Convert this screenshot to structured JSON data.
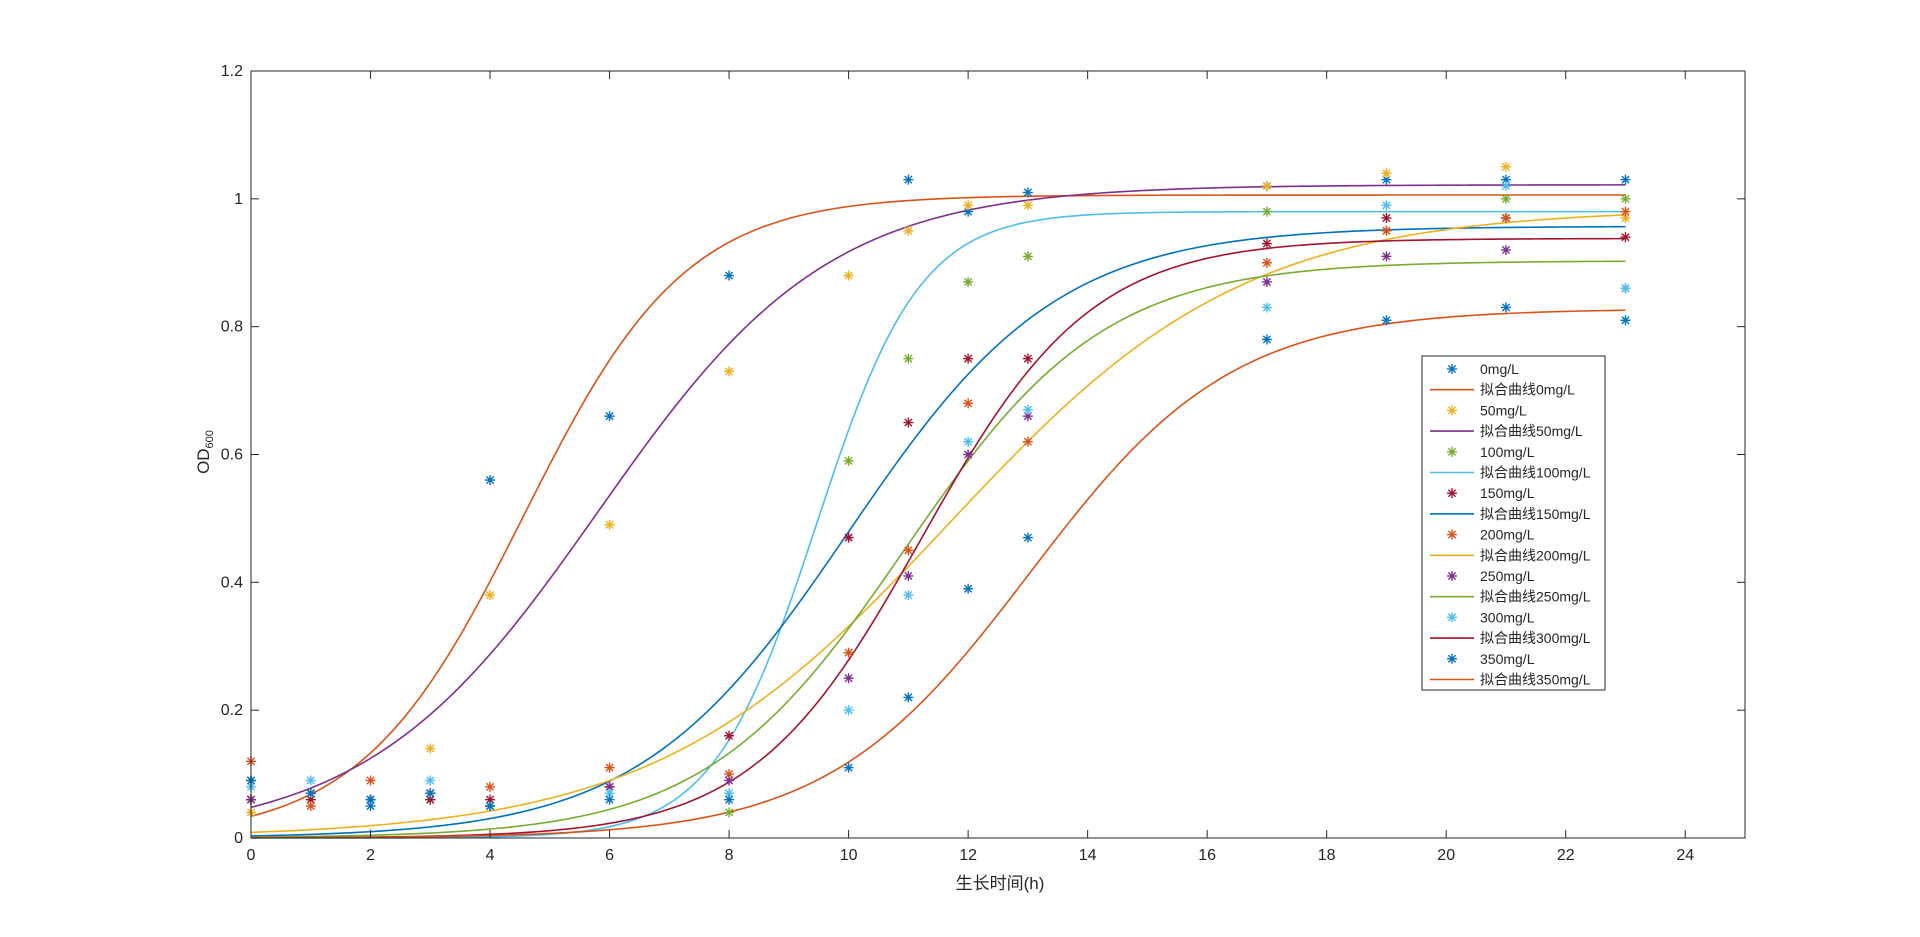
{
  "chart_data": {
    "type": "scatter",
    "title": "",
    "xlabel": "生长时间(h)",
    "ylabel": {
      "main": "OD",
      "sub": "600"
    },
    "xlim": [
      0,
      25
    ],
    "ylim": [
      0,
      1.2
    ],
    "xticks": [
      "0",
      "2",
      "4",
      "6",
      "8",
      "10",
      "12",
      "14",
      "16",
      "18",
      "20",
      "22",
      "24"
    ],
    "yticks": [
      "0",
      "0.2",
      "0.4",
      "0.6",
      "0.8",
      "1",
      "1.2"
    ],
    "grid": false,
    "legend_position": "east",
    "x": [
      0,
      1,
      2,
      3,
      4,
      6,
      8,
      10,
      11,
      12,
      13,
      17,
      19,
      21,
      23
    ],
    "series": [
      {
        "name": "0mg/L",
        "color": "#0072BD",
        "values": [
          0.09,
          0.07,
          0.05,
          0.06,
          0.56,
          0.66,
          0.88,
          0.47,
          1.03,
          0.98,
          1.01,
          1.02,
          1.03,
          1.03,
          1.03
        ]
      },
      {
        "name": "50mg/L",
        "color": "#EDB120",
        "values": [
          0.04,
          0.06,
          0.06,
          0.14,
          0.38,
          0.49,
          0.73,
          0.88,
          0.95,
          0.99,
          0.99,
          1.02,
          1.04,
          1.05,
          0.97
        ]
      },
      {
        "name": "100mg/L",
        "color": "#77AC30",
        "values": [
          0.06,
          0.06,
          0.06,
          0.06,
          0.05,
          0.08,
          0.04,
          0.59,
          0.75,
          0.87,
          0.91,
          0.98,
          0.95,
          1.0,
          1.0
        ]
      },
      {
        "name": "150mg/L",
        "color": "#A2142F",
        "values": [
          0.06,
          0.06,
          0.06,
          0.06,
          0.06,
          0.08,
          0.16,
          0.47,
          0.65,
          0.75,
          0.75,
          0.93,
          0.97,
          0.97,
          0.94
        ]
      },
      {
        "name": "200mg/L",
        "color": "#D95319",
        "values": [
          0.12,
          0.05,
          0.09,
          0.07,
          0.08,
          0.11,
          0.1,
          0.29,
          0.45,
          0.68,
          0.62,
          0.9,
          0.95,
          0.97,
          0.98
        ]
      },
      {
        "name": "250mg/L",
        "color": "#7E2F8E",
        "values": [
          0.06,
          0.07,
          0.06,
          0.07,
          0.05,
          0.08,
          0.09,
          0.25,
          0.41,
          0.6,
          0.66,
          0.87,
          0.91,
          0.92,
          0.86
        ]
      },
      {
        "name": "300mg/L",
        "color": "#4DBEEE",
        "values": [
          0.08,
          0.09,
          0.06,
          0.09,
          0.05,
          0.07,
          0.07,
          0.2,
          0.38,
          0.62,
          0.67,
          0.83,
          0.99,
          1.02,
          0.86
        ]
      },
      {
        "name": "350mg/L",
        "color": "#0072BD",
        "values": [
          0.09,
          0.07,
          0.06,
          0.07,
          0.05,
          0.06,
          0.06,
          0.11,
          0.22,
          0.39,
          0.47,
          0.78,
          0.81,
          0.83,
          0.81
        ]
      }
    ],
    "fits": [
      {
        "name": "拟合曲线0mg/L",
        "color": "#D95319",
        "K": 1.006,
        "N0": 0.034,
        "r": 0.736
      },
      {
        "name": "拟合曲线50mg/L",
        "color": "#7E2F8E",
        "K": 1.022,
        "N0": 0.048,
        "r": 0.518
      },
      {
        "name": "拟合曲线100mg/L",
        "color": "#4DBEEE",
        "K": 0.98,
        "N0": 1.78e-05,
        "r": 1.154
      },
      {
        "name": "拟合曲线150mg/L",
        "color": "#0072BD",
        "K": 0.957,
        "N0": 0.0032,
        "r": 0.57
      },
      {
        "name": "拟合曲线200mg/L",
        "color": "#EDB120",
        "K": 0.985,
        "N0": 0.0087,
        "r": 0.404
      },
      {
        "name": "拟合曲线250mg/L",
        "color": "#77AC30",
        "K": 0.903,
        "N0": 0.0013,
        "r": 0.598
      },
      {
        "name": "拟合曲线300mg/L",
        "color": "#A2142F",
        "K": 0.938,
        "N0": 0.00034,
        "r": 0.706
      },
      {
        "name": "拟合曲线350mg/L",
        "color": "#D95319",
        "K": 0.828,
        "N0": 0.00038,
        "r": 0.59
      }
    ],
    "legend": [
      "0mg/L",
      "拟合曲线0mg/L",
      "50mg/L",
      "拟合曲线50mg/L",
      "100mg/L",
      "拟合曲线100mg/L",
      "150mg/L",
      "拟合曲线150mg/L",
      "200mg/L",
      "拟合曲线200mg/L",
      "250mg/L",
      "拟合曲线250mg/L",
      "300mg/L",
      "拟合曲线300mg/L",
      "350mg/L",
      "拟合曲线350mg/L"
    ],
    "legend_colors": [
      "#0072BD",
      "#D95319",
      "#EDB120",
      "#7E2F8E",
      "#77AC30",
      "#4DBEEE",
      "#A2142F",
      "#0072BD",
      "#D95319",
      "#EDB120",
      "#7E2F8E",
      "#77AC30",
      "#4DBEEE",
      "#A2142F",
      "#0072BD",
      "#D95319"
    ],
    "legend_kinds": [
      "marker",
      "line",
      "marker",
      "line",
      "marker",
      "line",
      "marker",
      "line",
      "marker",
      "line",
      "marker",
      "line",
      "marker",
      "line",
      "marker",
      "line"
    ]
  }
}
